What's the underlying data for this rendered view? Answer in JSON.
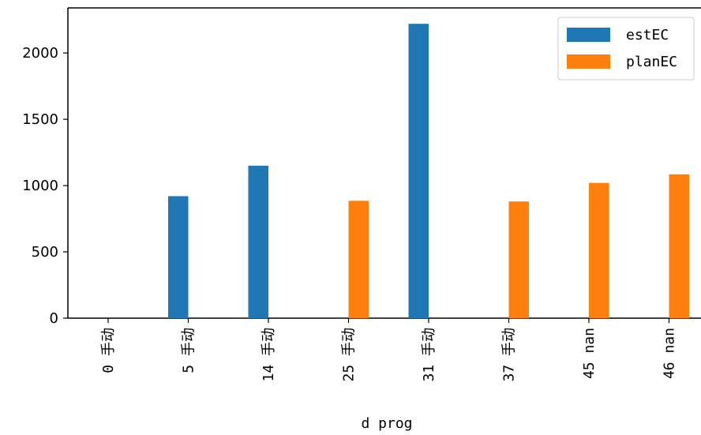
{
  "chart_data": {
    "type": "bar",
    "categories": [
      "0 手动",
      "5 手动",
      "14 手动",
      "25 手动",
      "31 手动",
      "37 手动",
      "45 nan",
      "46 nan"
    ],
    "series": [
      {
        "name": "estEC",
        "color": "#1f77b4",
        "values": [
          0,
          920,
          1150,
          0,
          2220,
          0,
          0,
          0
        ]
      },
      {
        "name": "planEC",
        "color": "#ff7f0e",
        "values": [
          0,
          0,
          0,
          885,
          0,
          880,
          1020,
          1085
        ]
      }
    ],
    "xlabel": "d prog",
    "ylabel": "",
    "ylim": [
      0,
      2340
    ],
    "yticks": [
      0,
      500,
      1000,
      1500,
      2000
    ],
    "grid": false,
    "legend_position": "top-right"
  }
}
